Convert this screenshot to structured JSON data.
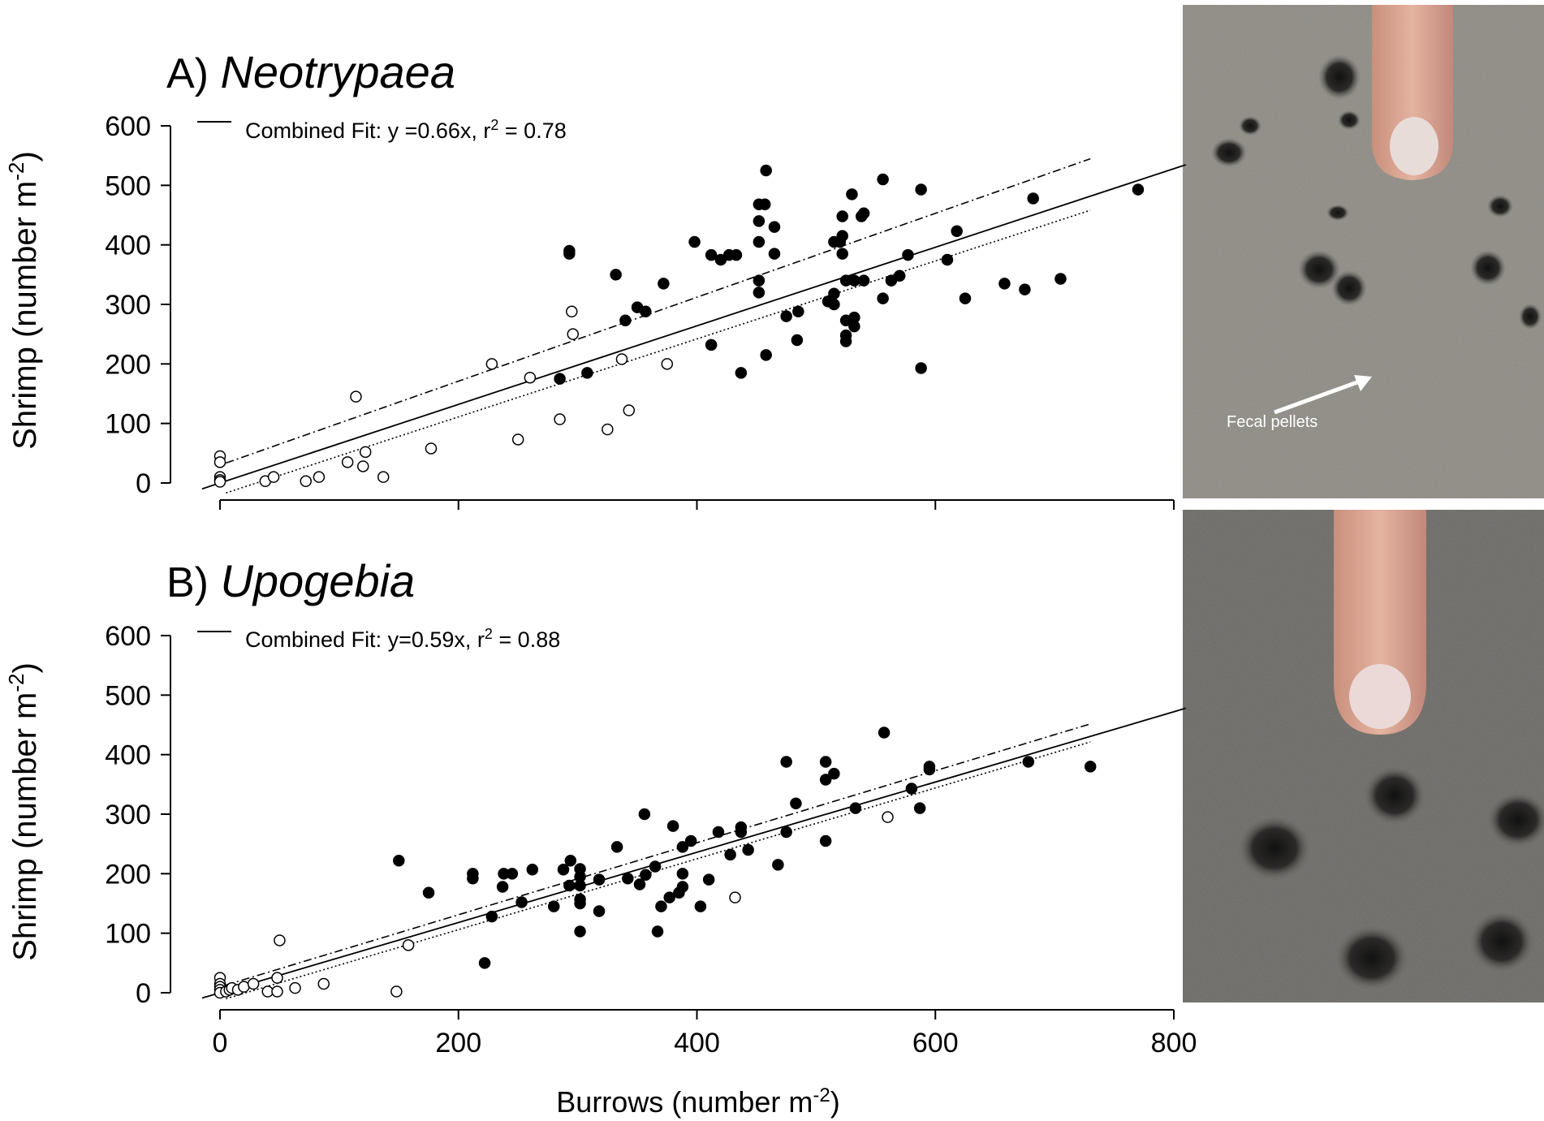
{
  "chart_data": [
    {
      "type": "scatter",
      "panel_label": "A)",
      "taxon": "Neotrypaea",
      "ylabel": "Shrimp (number m",
      "ylabel_sup": "-2",
      "ylabel_close": ")",
      "xlabel": "Burrows (number m",
      "xlabel_sup": "-2",
      "xlabel_close": ")",
      "xlim": [
        0,
        800
      ],
      "ylim": [
        0,
        600
      ],
      "xticks": [
        "0",
        "200",
        "400",
        "600",
        "800"
      ],
      "yticks": [
        "0",
        "100",
        "200",
        "300",
        "400",
        "500",
        "600"
      ],
      "legend": {
        "text_before": "Combined Fit: y =0.66x, r",
        "sup": "2",
        "text_after": " = 0.78"
      },
      "fit": {
        "slope": 0.66,
        "upper_slope": 0.705,
        "upper_intercept": 30,
        "lower_slope": 0.655,
        "lower_intercept": -20
      },
      "series": [
        {
          "marker": "open",
          "points": [
            [
              0,
              45
            ],
            [
              0,
              35
            ],
            [
              0,
              10
            ],
            [
              0,
              5
            ],
            [
              0,
              2
            ],
            [
              38,
              3
            ],
            [
              45,
              10
            ],
            [
              72,
              3
            ],
            [
              83,
              10
            ],
            [
              107,
              35
            ],
            [
              114,
              145
            ],
            [
              120,
              28
            ],
            [
              122,
              52
            ],
            [
              137,
              10
            ],
            [
              177,
              58
            ],
            [
              228,
              200
            ],
            [
              250,
              73
            ],
            [
              260,
              177
            ],
            [
              285,
              107
            ],
            [
              295,
              288
            ],
            [
              296,
              250
            ],
            [
              325,
              90
            ],
            [
              337,
              208
            ],
            [
              343,
              122
            ],
            [
              375,
              200
            ]
          ]
        },
        {
          "marker": "filled",
          "points": [
            [
              285,
              175
            ],
            [
              293,
              390
            ],
            [
              293,
              385
            ],
            [
              308,
              185
            ],
            [
              332,
              350
            ],
            [
              340,
              273
            ],
            [
              350,
              295
            ],
            [
              357,
              288
            ],
            [
              372,
              335
            ],
            [
              398,
              405
            ],
            [
              412,
              383
            ],
            [
              412,
              232
            ],
            [
              420,
              375
            ],
            [
              427,
              383
            ],
            [
              433,
              383
            ],
            [
              437,
              185
            ],
            [
              452,
              320
            ],
            [
              452,
              340
            ],
            [
              452,
              405
            ],
            [
              452,
              440
            ],
            [
              452,
              468
            ],
            [
              457,
              468
            ],
            [
              458,
              525
            ],
            [
              458,
              215
            ],
            [
              465,
              385
            ],
            [
              465,
              430
            ],
            [
              475,
              280
            ],
            [
              484,
              240
            ],
            [
              485,
              288
            ],
            [
              510,
              305
            ],
            [
              515,
              300
            ],
            [
              515,
              318
            ],
            [
              515,
              405
            ],
            [
              520,
              405
            ],
            [
              522,
              415
            ],
            [
              522,
              448
            ],
            [
              522,
              385
            ],
            [
              525,
              340
            ],
            [
              525,
              248
            ],
            [
              525,
              238
            ],
            [
              525,
              273
            ],
            [
              530,
              485
            ],
            [
              532,
              340
            ],
            [
              532,
              278
            ],
            [
              532,
              263
            ],
            [
              538,
              448
            ],
            [
              540,
              453
            ],
            [
              540,
              340
            ],
            [
              556,
              510
            ],
            [
              556,
              310
            ],
            [
              563,
              340
            ],
            [
              570,
              348
            ],
            [
              577,
              383
            ],
            [
              588,
              493
            ],
            [
              588,
              193
            ],
            [
              610,
              375
            ],
            [
              618,
              423
            ],
            [
              625,
              310
            ],
            [
              658,
              335
            ],
            [
              675,
              325
            ],
            [
              682,
              478
            ],
            [
              705,
              343
            ],
            [
              770,
              493
            ]
          ]
        }
      ]
    },
    {
      "type": "scatter",
      "panel_label": "B)",
      "taxon": "Upogebia",
      "ylabel": "Shrimp (number m",
      "ylabel_sup": "-2",
      "ylabel_close": ")",
      "xlabel": "Burrows (number m",
      "xlabel_sup": "-2",
      "xlabel_close": ")",
      "xlim": [
        0,
        800
      ],
      "ylim": [
        0,
        600
      ],
      "xticks": [
        "0",
        "200",
        "400",
        "600",
        "800"
      ],
      "yticks": [
        "0",
        "100",
        "200",
        "300",
        "400",
        "500",
        "600"
      ],
      "legend": {
        "text_before": "Combined Fit: y=0.59x,  r",
        "sup": "2",
        "text_after": " = 0.88"
      },
      "fit": {
        "slope": 0.59,
        "upper_slope": 0.605,
        "upper_intercept": 10,
        "lower_slope": 0.595,
        "lower_intercept": -13
      },
      "series": [
        {
          "marker": "open",
          "points": [
            [
              0,
              25
            ],
            [
              0,
              15
            ],
            [
              0,
              10
            ],
            [
              0,
              5
            ],
            [
              0,
              0
            ],
            [
              5,
              2
            ],
            [
              8,
              5
            ],
            [
              10,
              8
            ],
            [
              15,
              5
            ],
            [
              20,
              10
            ],
            [
              28,
              15
            ],
            [
              40,
              2
            ],
            [
              48,
              2
            ],
            [
              48,
              25
            ],
            [
              50,
              88
            ],
            [
              63,
              8
            ],
            [
              87,
              15
            ],
            [
              148,
              2
            ],
            [
              158,
              80
            ],
            [
              432,
              160
            ],
            [
              560,
              295
            ]
          ]
        },
        {
          "marker": "filled",
          "points": [
            [
              150,
              222
            ],
            [
              175,
              168
            ],
            [
              212,
              200
            ],
            [
              212,
              192
            ],
            [
              222,
              50
            ],
            [
              228,
              128
            ],
            [
              237,
              178
            ],
            [
              238,
              200
            ],
            [
              245,
              200
            ],
            [
              253,
              152
            ],
            [
              262,
              207
            ],
            [
              280,
              145
            ],
            [
              288,
              207
            ],
            [
              293,
              180
            ],
            [
              294,
              222
            ],
            [
              302,
              150
            ],
            [
              302,
              157
            ],
            [
              302,
              180
            ],
            [
              302,
              195
            ],
            [
              302,
              208
            ],
            [
              302,
              103
            ],
            [
              318,
              190
            ],
            [
              318,
              137
            ],
            [
              333,
              245
            ],
            [
              342,
              192
            ],
            [
              352,
              182
            ],
            [
              356,
              300
            ],
            [
              357,
              198
            ],
            [
              365,
              212
            ],
            [
              367,
              103
            ],
            [
              370,
              145
            ],
            [
              377,
              160
            ],
            [
              380,
              280
            ],
            [
              385,
              168
            ],
            [
              388,
              200
            ],
            [
              388,
              178
            ],
            [
              388,
              245
            ],
            [
              395,
              255
            ],
            [
              403,
              145
            ],
            [
              410,
              190
            ],
            [
              418,
              270
            ],
            [
              428,
              232
            ],
            [
              437,
              278
            ],
            [
              437,
              270
            ],
            [
              443,
              240
            ],
            [
              468,
              215
            ],
            [
              475,
              388
            ],
            [
              475,
              270
            ],
            [
              483,
              318
            ],
            [
              508,
              388
            ],
            [
              508,
              358
            ],
            [
              508,
              255
            ],
            [
              515,
              368
            ],
            [
              533,
              310
            ],
            [
              557,
              437
            ],
            [
              580,
              343
            ],
            [
              587,
              310
            ],
            [
              595,
              380
            ],
            [
              595,
              375
            ],
            [
              678,
              388
            ],
            [
              730,
              380
            ]
          ]
        }
      ]
    }
  ],
  "photos": {
    "top_annotation": "Fecal pellets"
  }
}
